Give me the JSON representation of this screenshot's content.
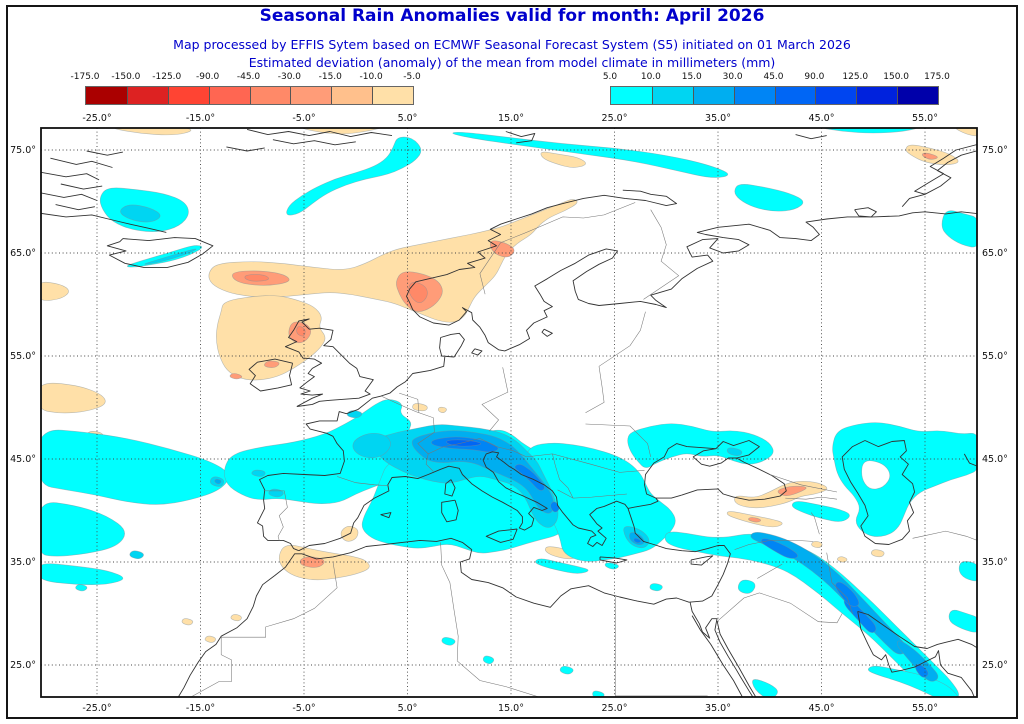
{
  "header": {
    "title": "Seasonal Rain Anomalies valid for month: April 2026",
    "subtitle1": "Map processed by EFFIS Sytem based on ECMWF Seasonal Forecast System (S5) initiated on 01 March 2026",
    "subtitle2": "Estimated deviation (anomaly) of the mean from model climate in millimeters (mm)",
    "title_color": "#0000CC"
  },
  "legend": {
    "negative": {
      "labels": [
        "-175.0",
        "-150.0",
        "-125.0",
        "-90.0",
        "-45.0",
        "-30.0",
        "-15.0",
        "-10.0",
        "-5.0"
      ],
      "colors": [
        "#AA0000",
        "#DD2222",
        "#FF4433",
        "#FF6652",
        "#FF8968",
        "#FF9C78",
        "#FFC08C",
        "#FFE0A8"
      ]
    },
    "positive": {
      "labels": [
        "5.0",
        "10.0",
        "15.0",
        "30.0",
        "45.0",
        "90.0",
        "125.0",
        "150.0",
        "175.0"
      ],
      "colors": [
        "#00FFFF",
        "#00D5F2",
        "#00AEF0",
        "#0085F5",
        "#0066F5",
        "#0045F0",
        "#0022DD",
        "#0000AA"
      ]
    }
  },
  "map": {
    "lon_labels": [
      "-25.0°",
      "-15.0°",
      "-5.0°",
      "5.0°",
      "15.0°",
      "25.0°",
      "35.0°",
      "45.0°",
      "55.0°"
    ],
    "lons": [
      -25,
      -15,
      -5,
      5,
      15,
      25,
      35,
      45,
      55
    ],
    "lat_labels": [
      "75.0°",
      "65.0°",
      "55.0°",
      "45.0°",
      "35.0°",
      "25.0°"
    ],
    "lats": [
      75,
      65,
      55,
      45,
      35,
      25
    ],
    "grid_color": "#444444",
    "coast_color": "#333333",
    "border_color": "#777777"
  },
  "anomaly_regions": [
    {
      "area": "Western Mediterranean, France, Italy, Balkans, Aegean",
      "sign": "wetter",
      "approx_mm": "5 to 45"
    },
    {
      "area": "Alpine ridge and Dinarides (peak)",
      "sign": "wetter",
      "approx_mm": "45 to 90"
    },
    {
      "area": "SE Turkey - Zagros - Persian Gulf band",
      "sign": "wetter",
      "approx_mm": "10 to 45"
    },
    {
      "area": "North Atlantic west of Iberia",
      "sign": "wetter",
      "approx_mm": "5 to 15"
    },
    {
      "area": "Caspian region and Barents Sea fringes",
      "sign": "wetter",
      "approx_mm": "5 to 10"
    },
    {
      "area": "Norwegian Sea and coastal southern Norway",
      "sign": "drier",
      "approx_mm": "-5 to -30"
    },
    {
      "area": "Scotland, Irish Sea, seas NW of Britain",
      "sign": "drier",
      "approx_mm": "-5 to -30"
    },
    {
      "area": "Sea SE of Iceland",
      "sign": "drier",
      "approx_mm": "-5 to -30"
    },
    {
      "area": "NW Morocco / Alboran Sea",
      "sign": "drier",
      "approx_mm": "-5 to -15"
    },
    {
      "area": "Caucasus and eastern Turkey",
      "sign": "drier",
      "approx_mm": "-5 to -15"
    }
  ]
}
